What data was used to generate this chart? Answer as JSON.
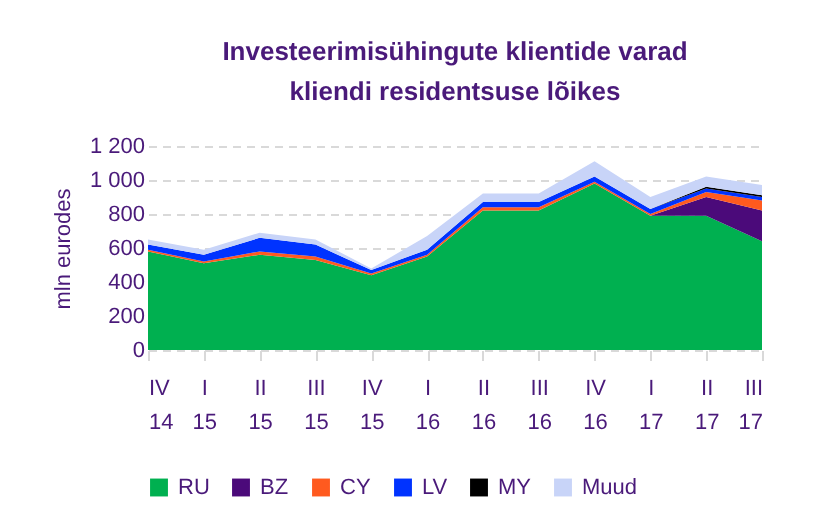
{
  "chart_data": {
    "type": "area",
    "title": "Investeerimisühingute klientide varad\nkliendi residentsuse lõikes",
    "ylabel": "mln eurodes",
    "stacked": true,
    "categories": [
      "IV 14",
      "I 15",
      "II 15",
      "III 15",
      "IV 15",
      "I 16",
      "II 16",
      "III 16",
      "IV 16",
      "I 17",
      "II 17",
      "III 17"
    ],
    "series": [
      {
        "name": "RU",
        "color": "#00b050",
        "values": [
          580,
          510,
          560,
          530,
          440,
          550,
          820,
          820,
          980,
          790,
          790,
          640
        ]
      },
      {
        "name": "BZ",
        "color": "#4b0a7a",
        "values": [
          null,
          null,
          null,
          null,
          null,
          null,
          null,
          null,
          null,
          0,
          110,
          180
        ]
      },
      {
        "name": "CY",
        "color": "#ff5a1f",
        "values": [
          10,
          10,
          20,
          20,
          10,
          10,
          20,
          20,
          10,
          10,
          30,
          60
        ]
      },
      {
        "name": "LV",
        "color": "#0033ff",
        "values": [
          30,
          40,
          80,
          70,
          20,
          30,
          30,
          30,
          30,
          30,
          20,
          20
        ]
      },
      {
        "name": "MY",
        "color": "#000000",
        "values": [
          null,
          null,
          null,
          null,
          null,
          null,
          null,
          null,
          null,
          0,
          10,
          10
        ]
      },
      {
        "name": "Muud",
        "color": "#c8d4f8",
        "values": [
          30,
          30,
          30,
          30,
          10,
          80,
          50,
          50,
          90,
          70,
          60,
          60
        ]
      }
    ],
    "ylim": [
      0,
      1200
    ],
    "yticks": [
      0,
      200,
      400,
      600,
      800,
      {
        "value": 1000,
        "label": "1 000"
      },
      {
        "value": 1200,
        "label": "1 200"
      }
    ],
    "grid": "y",
    "legend": "bottom"
  }
}
